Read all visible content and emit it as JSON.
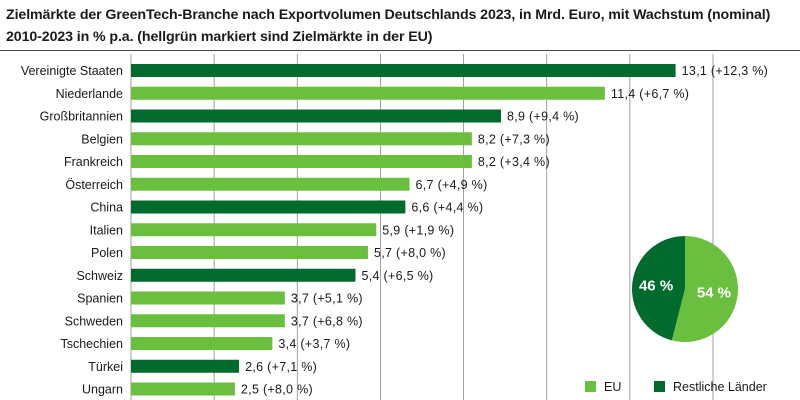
{
  "title": "Zielmärkte der GreenTech-Branche nach Exportvolumen Deutschlands 2023, in Mrd. Euro, mit Wachstum (nominal) 2010-2023 in % p.a. (hellgrün markiert sind Zielmärkte in der EU)",
  "colors": {
    "eu": "#6bbf3f",
    "rest": "#006b2d",
    "grid": "#888888"
  },
  "chart_data": {
    "type": "bar",
    "orientation": "horizontal",
    "xlim": [
      0,
      14
    ],
    "grid": true,
    "categories": [
      "Vereinigte Staaten",
      "Niederlande",
      "Großbritannien",
      "Belgien",
      "Frankreich",
      "Österreich",
      "China",
      "Italien",
      "Polen",
      "Schweiz",
      "Spanien",
      "Schweden",
      "Tschechien",
      "Türkei",
      "Ungarn"
    ],
    "values": [
      13.1,
      11.4,
      8.9,
      8.2,
      8.2,
      6.7,
      6.6,
      5.9,
      5.7,
      5.4,
      3.7,
      3.7,
      3.4,
      2.6,
      2.5
    ],
    "group": [
      "Restliche Länder",
      "EU",
      "Restliche Länder",
      "EU",
      "EU",
      "EU",
      "Restliche Länder",
      "EU",
      "EU",
      "Restliche Länder",
      "EU",
      "EU",
      "EU",
      "Restliche Länder",
      "EU"
    ],
    "labels": [
      "13,1 (+12,3 %)",
      "11,4 (+6,7 %)",
      "8,9 (+9,4 %)",
      "8,2 (+7,3 %)",
      "8,2 (+3,4 %)",
      "6,7 (+4,9 %)",
      "6,6 (+4,4 %)",
      "5,9 (+1,9 %)",
      "5,7 (+8,0 %)",
      "5,4 (+6,5 %)",
      "3,7 (+5,1 %)",
      "3,7 (+6,8 %)",
      "3,4 (+3,7 %)",
      "2,6 (+7,1 %)",
      "2,5 (+8,0 %)"
    ],
    "legend": [
      "EU",
      "Restliche Länder"
    ],
    "legend_position": "bottom-right",
    "pie": {
      "slices": [
        {
          "name": "EU",
          "value": 54,
          "label": "54 %"
        },
        {
          "name": "Restliche Länder",
          "value": 46,
          "label": "46 %"
        }
      ]
    }
  }
}
